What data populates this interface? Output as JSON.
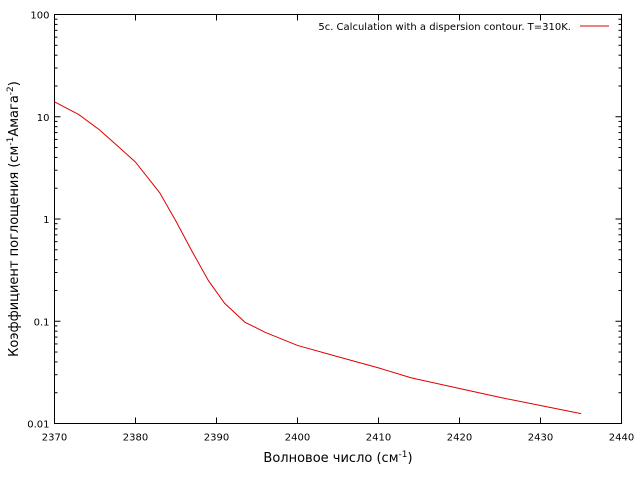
{
  "chart_data": {
    "type": "line",
    "xlabel_main": "Волновое число (см",
    "xlabel_sup": "-1",
    "xlabel_end": ")",
    "ylabel_main": "Коэффициент поглощения (см",
    "ylabel_sup1": "-1",
    "ylabel_mid": "Амага",
    "ylabel_sup2": "-2",
    "ylabel_end": ")",
    "x_ticks": [
      2370,
      2380,
      2390,
      2400,
      2410,
      2420,
      2430,
      2440
    ],
    "y_ticks": [
      0.01,
      0.1,
      1,
      10,
      100
    ],
    "y_tick_labels": [
      "0.01",
      "0.1",
      "1",
      "10",
      "100"
    ],
    "xlim": [
      2370,
      2440
    ],
    "ylim": [
      0.01,
      100
    ],
    "y_scale": "log",
    "legend_position": "top-right",
    "series": [
      {
        "name": "5c. Calculation with a dispersion contour. T=310K.",
        "color": "#e00000",
        "x": [
          2370,
          2373,
          2375.5,
          2378,
          2380,
          2383,
          2385,
          2387,
          2389,
          2391,
          2393.5,
          2396,
          2400,
          2405,
          2410,
          2414,
          2420,
          2425,
          2430,
          2435
        ],
        "y": [
          14,
          10.5,
          7.5,
          5.0,
          3.6,
          1.8,
          0.95,
          0.48,
          0.25,
          0.15,
          0.098,
          0.078,
          0.058,
          0.045,
          0.035,
          0.028,
          0.022,
          0.018,
          0.015,
          0.0125
        ]
      }
    ]
  }
}
